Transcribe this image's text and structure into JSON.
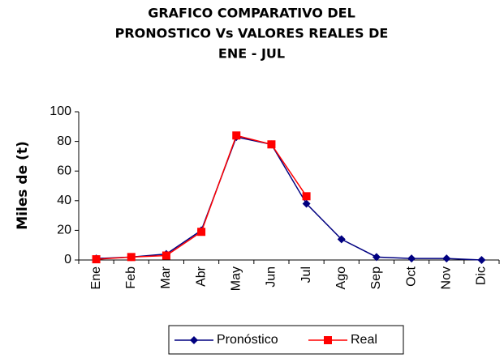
{
  "chart_data": {
    "type": "line",
    "title": [
      "GRAFICO COMPARATIVO DEL",
      "PRONOSTICO Vs VALORES REALES DE",
      "ENE - JUL"
    ],
    "title_color": "#ff0000",
    "y_label": "Miles de (t)",
    "categories": [
      "Ene",
      "Feb",
      "Mar",
      "Abr",
      "May",
      "Jun",
      "Jul",
      "Ago",
      "Sep",
      "Oct",
      "Nov",
      "Dic"
    ],
    "series": [
      {
        "name": "Pronóstico",
        "color": "#000080",
        "marker": "diamond",
        "values": [
          1,
          2,
          4,
          20,
          83,
          78,
          38,
          14,
          2,
          1,
          1,
          0
        ]
      },
      {
        "name": "Real",
        "color": "#ff0000",
        "marker": "square",
        "values": [
          0.5,
          2,
          3,
          19,
          84,
          78,
          43,
          null,
          null,
          null,
          null,
          null
        ]
      }
    ],
    "ylim": [
      0,
      100
    ],
    "yticks": [
      0,
      20,
      40,
      60,
      80,
      100
    ],
    "grid": false,
    "legend": "bottom"
  }
}
